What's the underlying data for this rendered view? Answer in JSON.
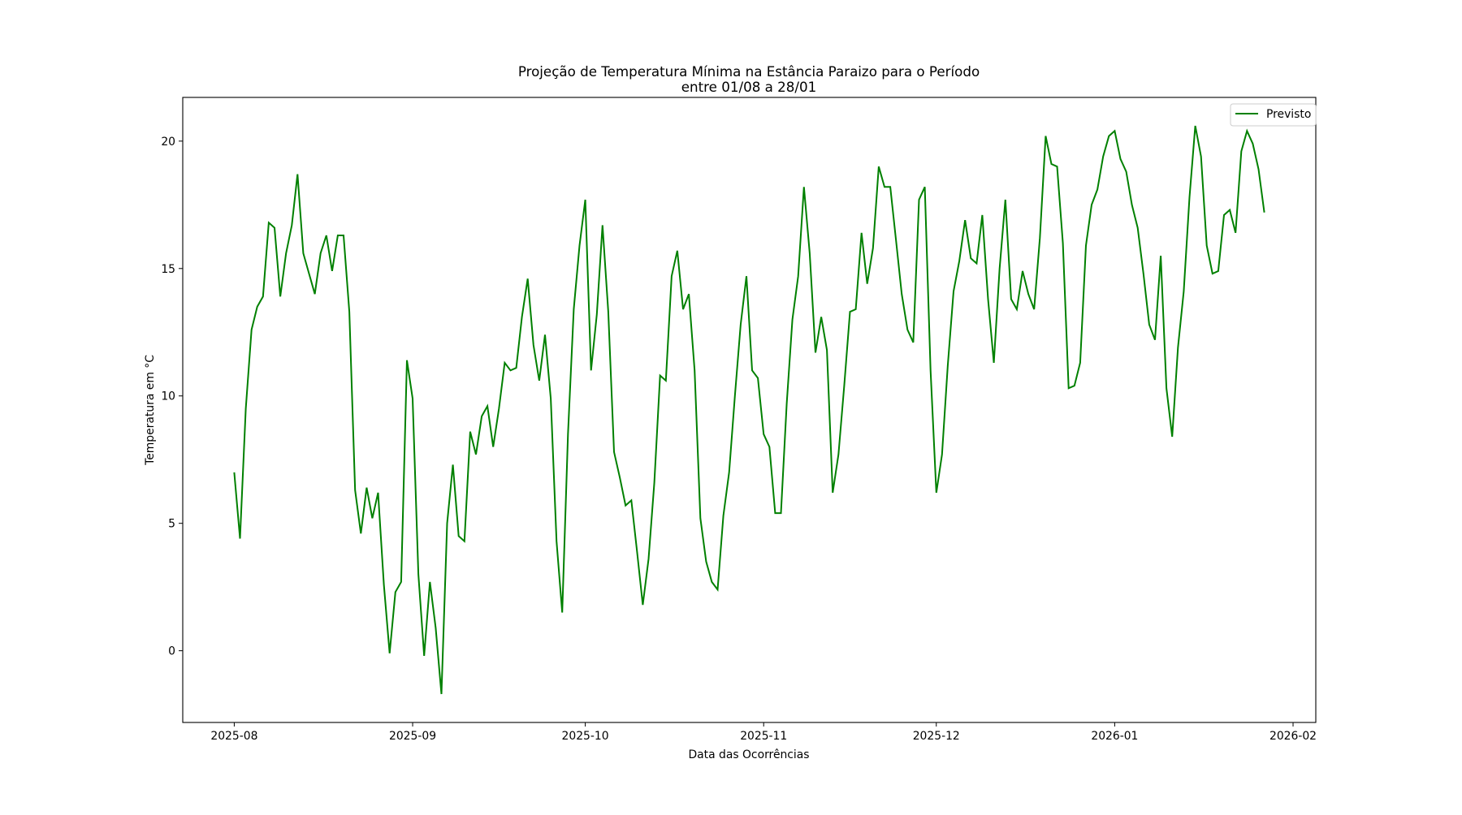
{
  "chart_data": {
    "type": "line",
    "title": "Projeção de Temperatura Mínima na Estância Paraizo para o Período",
    "title_line2": "entre 01/08 a 28/01",
    "xlabel": "Data das Ocorrências",
    "ylabel": "Temperatura em °C",
    "x_start_date": "2025-08-01",
    "x_step": "1 day",
    "xlim_days": [
      -8.95,
      187.95
    ],
    "ylim": [
      -2.815,
      21.715
    ],
    "x_ticks": [
      {
        "label": "2025-08",
        "day": 0
      },
      {
        "label": "2025-09",
        "day": 31
      },
      {
        "label": "2025-10",
        "day": 61
      },
      {
        "label": "2025-11",
        "day": 92
      },
      {
        "label": "2025-12",
        "day": 122
      },
      {
        "label": "2026-01",
        "day": 153
      },
      {
        "label": "2026-02",
        "day": 184
      }
    ],
    "y_ticks": [
      {
        "label": "0",
        "value": 0
      },
      {
        "label": "5",
        "value": 5
      },
      {
        "label": "10",
        "value": 10
      },
      {
        "label": "15",
        "value": 15
      },
      {
        "label": "20",
        "value": 20
      }
    ],
    "grid": false,
    "legend_position": "top-right",
    "series": [
      {
        "name": "Previsto",
        "color": "#008000",
        "values": [
          7.0,
          4.4,
          9.5,
          12.6,
          13.5,
          13.9,
          16.8,
          16.6,
          13.9,
          15.6,
          16.7,
          18.7,
          15.6,
          14.8,
          14.0,
          15.6,
          16.3,
          14.9,
          16.3,
          16.3,
          13.3,
          6.3,
          4.6,
          6.4,
          5.2,
          6.2,
          2.6,
          -0.1,
          2.3,
          2.7,
          11.4,
          9.9,
          3.0,
          -0.2,
          2.7,
          0.9,
          -1.7,
          5.0,
          7.3,
          4.5,
          4.3,
          8.6,
          7.7,
          9.2,
          9.6,
          8.0,
          9.5,
          11.3,
          11.0,
          11.1,
          13.1,
          14.6,
          12.0,
          10.6,
          12.4,
          9.9,
          4.3,
          1.5,
          8.5,
          13.4,
          15.9,
          17.7,
          11.0,
          13.2,
          16.7,
          13.3,
          7.8,
          6.8,
          5.7,
          5.9,
          3.9,
          1.8,
          3.6,
          6.6,
          10.8,
          10.6,
          14.7,
          15.7,
          13.4,
          14.0,
          11.0,
          5.2,
          3.5,
          2.7,
          2.4,
          5.3,
          7.0,
          10.0,
          12.8,
          14.7,
          11.0,
          10.7,
          8.5,
          8.0,
          5.4,
          5.4,
          9.7,
          13.0,
          14.7,
          18.2,
          15.6,
          11.7,
          13.1,
          11.8,
          6.2,
          7.7,
          10.4,
          13.3,
          13.4,
          16.4,
          14.4,
          15.8,
          19.0,
          18.2,
          18.2,
          16.1,
          14.0,
          12.6,
          12.1,
          17.7,
          18.2,
          11.0,
          6.2,
          7.7,
          11.2,
          14.1,
          15.3,
          16.9,
          15.4,
          15.2,
          17.1,
          13.8,
          11.3,
          15.0,
          17.7,
          13.8,
          13.4,
          14.9,
          14.0,
          13.4,
          16.2,
          20.2,
          19.1,
          19.0,
          16.0,
          10.3,
          10.4,
          11.3,
          15.9,
          17.5,
          18.1,
          19.4,
          20.2,
          20.4,
          19.3,
          18.8,
          17.5,
          16.6,
          14.8,
          12.8,
          12.2,
          15.5,
          10.3,
          8.4,
          11.9,
          14.1,
          17.8,
          20.6,
          19.4,
          15.9,
          14.8,
          14.9,
          17.1,
          17.3,
          16.4,
          19.6,
          20.4,
          19.9,
          18.9,
          17.2
        ]
      }
    ]
  }
}
